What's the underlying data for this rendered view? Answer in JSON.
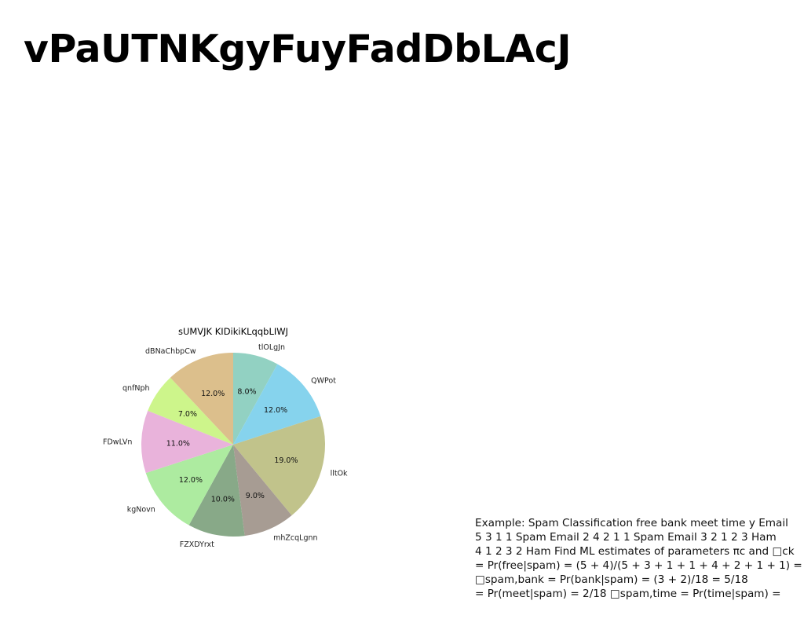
{
  "page": {
    "title": "vPaUTNKgyFuyFadDbLAcJ"
  },
  "chart_data": {
    "type": "pie",
    "title": "sUMVJK KIDikiKLqqbLIWJ",
    "start_angle": 90,
    "direction": "clockwise",
    "slices": [
      {
        "label": "tlOLgJn",
        "value": 8.0,
        "pct_label": "8.0%",
        "color": "#92d1c2"
      },
      {
        "label": "QWPot",
        "value": 12.0,
        "pct_label": "12.0%",
        "color": "#86d3ed"
      },
      {
        "label": "lltOk",
        "value": 19.0,
        "pct_label": "19.0%",
        "color": "#c1c38b"
      },
      {
        "label": "mhZcqLgnn",
        "value": 9.0,
        "pct_label": "9.0%",
        "color": "#a79c93"
      },
      {
        "label": "FZXDYrxt",
        "value": 10.0,
        "pct_label": "10.0%",
        "color": "#88a988"
      },
      {
        "label": "kgNovn",
        "value": 12.0,
        "pct_label": "12.0%",
        "color": "#adeba0"
      },
      {
        "label": "FDwLVn",
        "value": 11.0,
        "pct_label": "11.0%",
        "color": "#e9b3db"
      },
      {
        "label": "qnfNph",
        "value": 7.0,
        "pct_label": "7.0%",
        "color": "#cdf58b"
      },
      {
        "label": "dBNaChbpCw",
        "value": 12.0,
        "pct_label": "12.0%",
        "color": "#dcbf8c"
      }
    ]
  },
  "body_text": {
    "lines": [
      "Example: Spam Classification free bank meet time y Email",
      "5 3 1 1 Spam Email 2 4 2 1 1 Spam Email 3 2 1 2 3 Ham",
      "4 1 2 3 2 Ham Find ML estimates of parameters πc and □ck",
      "= Pr(free|spam) = (5 + 4)/(5 + 3 + 1 + 1 + 4 + 2 + 1 + 1) =",
      "□spam,bank = Pr(bank|spam) = (3 + 2)/18 = 5/18",
      "= Pr(meet|spam) = 2/18 □spam,time = Pr(time|spam) ="
    ]
  }
}
